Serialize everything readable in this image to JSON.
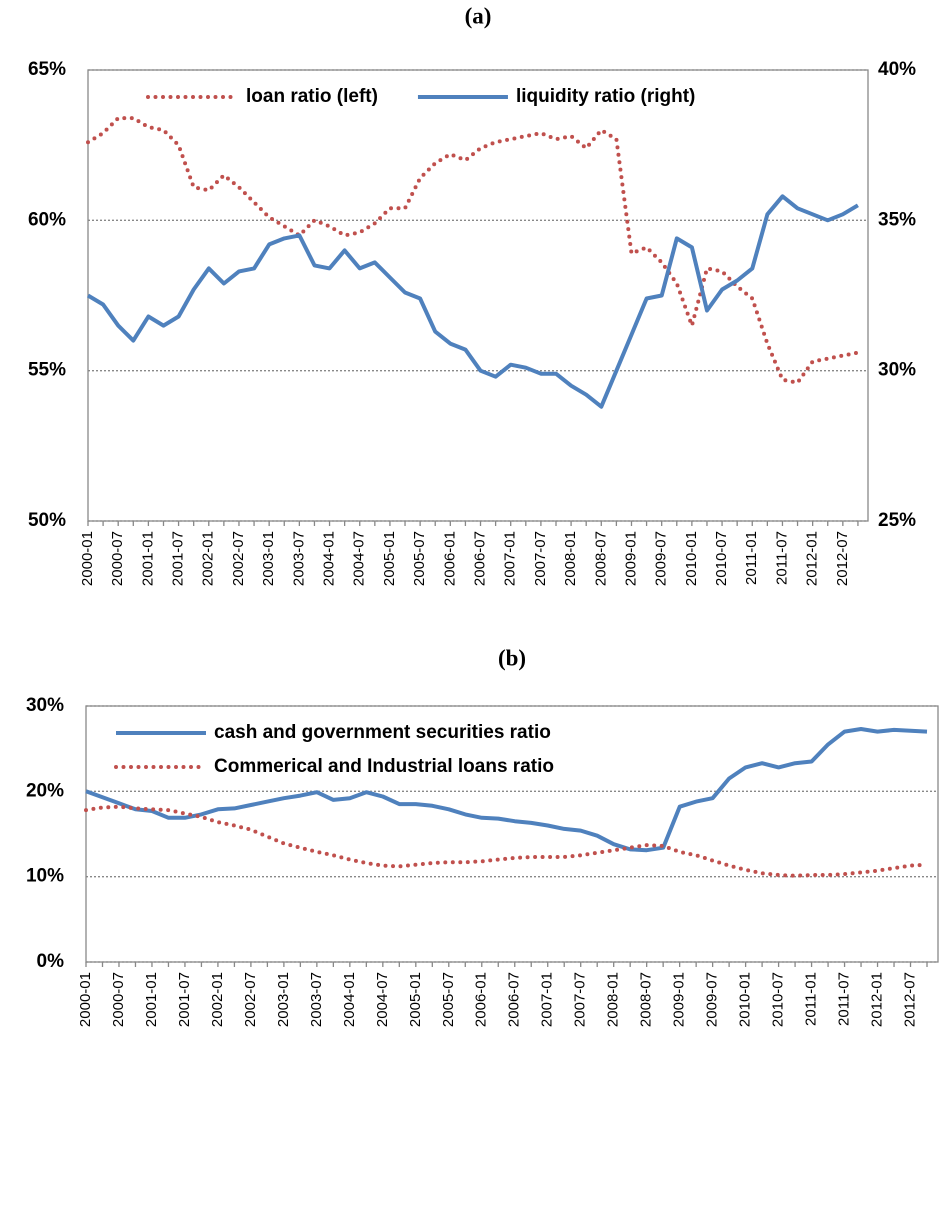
{
  "chart_data": [
    {
      "type": "line",
      "title": "(a)",
      "categories": [
        "2000-01",
        null,
        "2000-07",
        null,
        "2001-01",
        null,
        "2001-07",
        null,
        "2002-01",
        null,
        "2002-07",
        null,
        "2003-01",
        null,
        "2003-07",
        null,
        "2004-01",
        null,
        "2004-07",
        null,
        "2005-01",
        null,
        "2005-07",
        null,
        "2006-01",
        null,
        "2006-07",
        null,
        "2007-01",
        null,
        "2007-07",
        null,
        "2008-01",
        null,
        "2008-07",
        null,
        "2009-01",
        null,
        "2009-07",
        null,
        "2010-01",
        null,
        "2010-07",
        null,
        "2011-01",
        null,
        "2011-07",
        null,
        "2012-01",
        null,
        "2012-07",
        null
      ],
      "series": [
        {
          "name": "loan ratio (left)",
          "color": "#c0504d",
          "style": "dotted",
          "values": [
            62.6,
            62.9,
            63.4,
            63.4,
            63.1,
            63.0,
            62.5,
            61.1,
            61.0,
            61.5,
            61.1,
            60.6,
            60.1,
            59.8,
            59.5,
            60.0,
            59.8,
            59.5,
            59.6,
            59.9,
            60.4,
            60.4,
            61.4,
            61.9,
            62.2,
            62.0,
            62.4,
            62.6,
            62.7,
            62.8,
            62.9,
            62.7,
            62.8,
            62.4,
            63.0,
            62.7,
            58.9,
            59.1,
            58.6,
            57.9,
            56.5,
            58.4,
            58.3,
            57.8,
            57.4,
            55.9,
            54.7,
            54.6,
            55.3,
            55.4,
            55.5,
            55.6
          ]
        },
        {
          "name": "liquidity ratio (right)",
          "color": "#4f81bd",
          "style": "solid",
          "axis": "y2",
          "values": [
            32.5,
            32.2,
            31.5,
            31.0,
            31.8,
            31.5,
            31.8,
            32.7,
            33.4,
            32.9,
            33.3,
            33.4,
            34.2,
            34.4,
            34.5,
            33.5,
            33.4,
            34.0,
            33.4,
            33.6,
            33.1,
            32.6,
            32.4,
            31.3,
            30.9,
            30.7,
            30.0,
            29.8,
            30.2,
            30.1,
            29.9,
            29.9,
            29.5,
            29.2,
            28.8,
            30.0,
            31.2,
            32.4,
            32.5,
            34.4,
            34.1,
            32.0,
            32.7,
            33.0,
            33.4,
            35.2,
            35.8,
            35.4,
            35.2,
            35.0,
            35.2,
            35.5
          ]
        }
      ],
      "ylim": [
        50,
        65
      ],
      "yticks": [
        {
          "value": 50,
          "label": "50%"
        },
        {
          "value": 55,
          "label": "55%"
        },
        {
          "value": 60,
          "label": "60%"
        },
        {
          "value": 65,
          "label": "65%"
        }
      ],
      "y2lim": [
        25,
        40
      ],
      "y2ticks": [
        {
          "value": 25,
          "label": "25%"
        },
        {
          "value": 30,
          "label": "30%"
        },
        {
          "value": 35,
          "label": "35%"
        },
        {
          "value": 40,
          "label": "40%"
        }
      ],
      "grid": true,
      "legend": "top"
    },
    {
      "type": "line",
      "title": "(b)",
      "categories": [
        "2000-01",
        null,
        "2000-07",
        null,
        "2001-01",
        null,
        "2001-07",
        null,
        "2002-01",
        null,
        "2002-07",
        null,
        "2003-01",
        null,
        "2003-07",
        null,
        "2004-01",
        null,
        "2004-07",
        null,
        "2005-01",
        null,
        "2005-07",
        null,
        "2006-01",
        null,
        "2006-07",
        null,
        "2007-01",
        null,
        "2007-07",
        null,
        "2008-01",
        null,
        "2008-07",
        null,
        "2009-01",
        null,
        "2009-07",
        null,
        "2010-01",
        null,
        "2010-07",
        null,
        "2011-01",
        null,
        "2011-07",
        null,
        "2012-01",
        null,
        "2012-07",
        null
      ],
      "series": [
        {
          "name": "cash and government securities ratio",
          "color": "#4f81bd",
          "style": "solid",
          "values": [
            20.0,
            19.3,
            18.6,
            17.9,
            17.7,
            16.9,
            16.9,
            17.3,
            17.9,
            18.0,
            18.4,
            18.8,
            19.2,
            19.5,
            19.9,
            19.0,
            19.2,
            19.9,
            19.4,
            18.5,
            18.5,
            18.3,
            17.9,
            17.3,
            16.9,
            16.8,
            16.5,
            16.3,
            16.0,
            15.6,
            15.4,
            14.8,
            13.8,
            13.2,
            13.1,
            13.4,
            18.2,
            18.8,
            19.2,
            21.5,
            22.8,
            23.3,
            22.8,
            23.3,
            23.5,
            25.5,
            27.0,
            27.3,
            27.0,
            27.2,
            27.1,
            27.0
          ]
        },
        {
          "name": "Commerical and Industrial loans ratio",
          "color": "#c0504d",
          "style": "dotted",
          "values": [
            17.8,
            18.1,
            18.2,
            18.0,
            17.9,
            17.8,
            17.4,
            17.0,
            16.4,
            16.0,
            15.5,
            14.7,
            13.9,
            13.4,
            12.9,
            12.5,
            12.0,
            11.6,
            11.3,
            11.2,
            11.4,
            11.6,
            11.7,
            11.7,
            11.8,
            12.0,
            12.2,
            12.3,
            12.3,
            12.3,
            12.5,
            12.8,
            13.1,
            13.4,
            13.7,
            13.6,
            12.9,
            12.5,
            11.9,
            11.3,
            10.8,
            10.4,
            10.2,
            10.1,
            10.2,
            10.2,
            10.3,
            10.5,
            10.7,
            11.0,
            11.3,
            11.4
          ]
        }
      ],
      "ylim": [
        0,
        30
      ],
      "yticks": [
        {
          "value": 0,
          "label": "0%"
        },
        {
          "value": 10,
          "label": "10%"
        },
        {
          "value": 20,
          "label": "20%"
        },
        {
          "value": 30,
          "label": "30%"
        }
      ],
      "grid": true,
      "legend": "top-left"
    }
  ]
}
